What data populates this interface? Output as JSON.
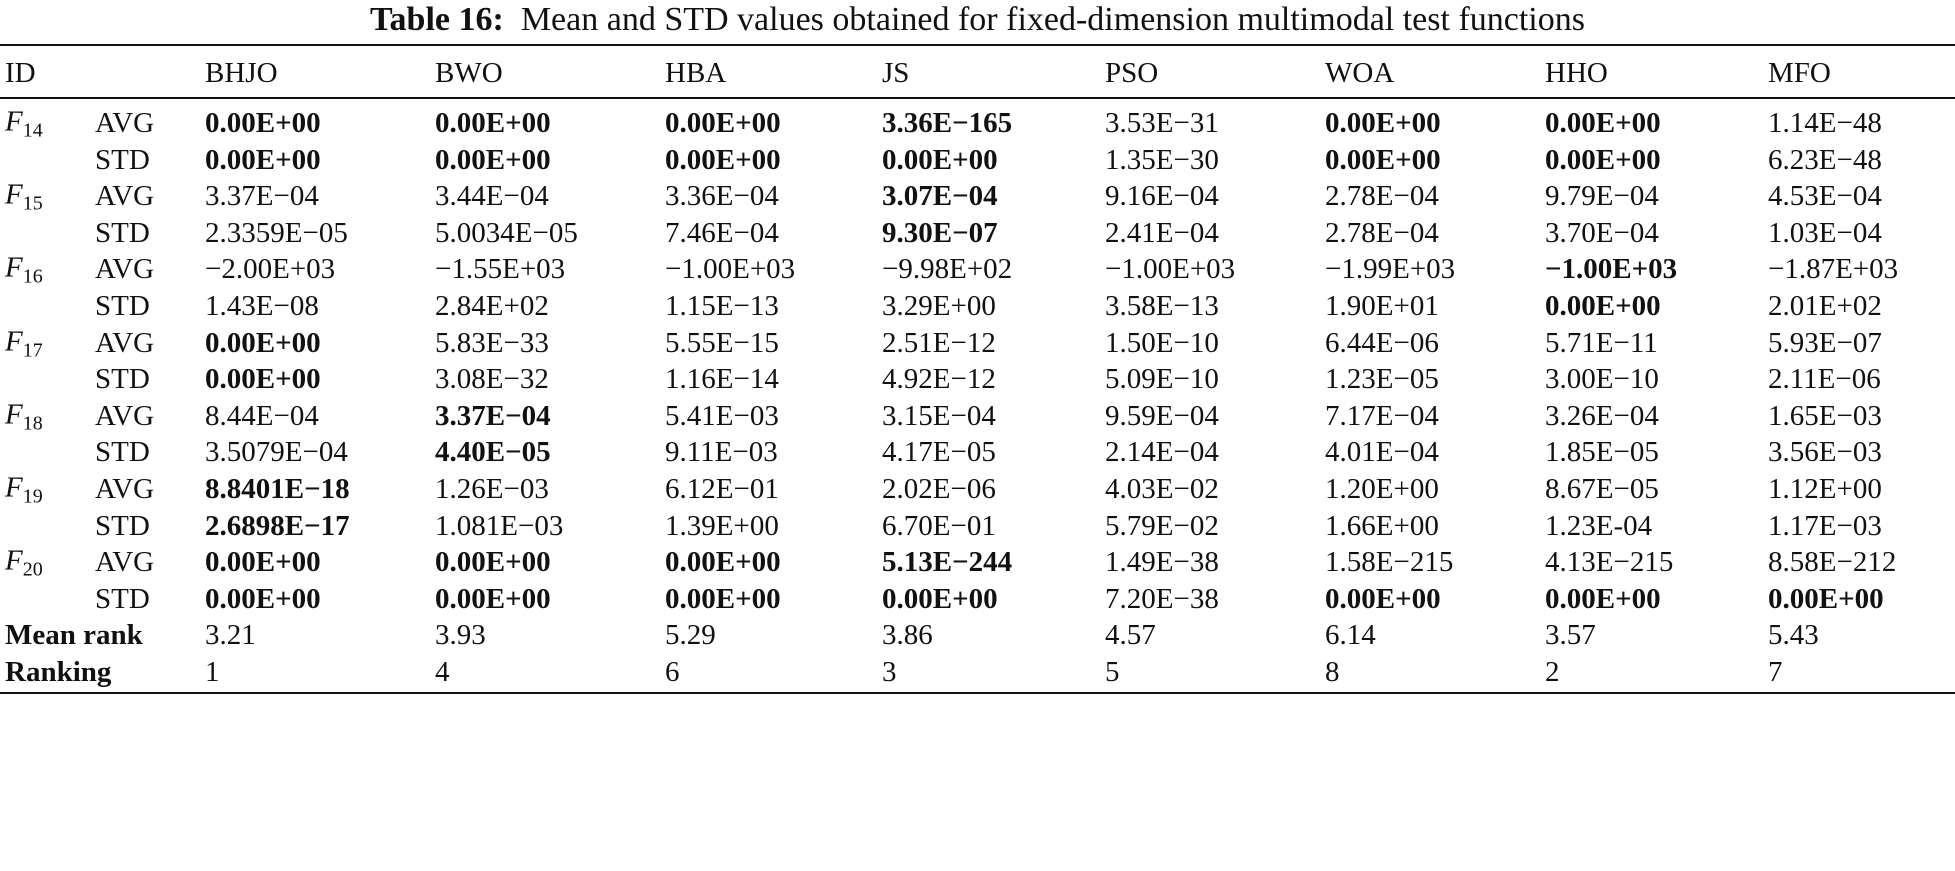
{
  "title": {
    "label": "Table 16:",
    "text": "Mean and STD values obtained for fixed-dimension multimodal test functions"
  },
  "table": {
    "header": [
      "ID",
      "BHJO",
      "BWO",
      "HBA",
      "JS",
      "PSO",
      "WOA",
      "HHO",
      "MFO"
    ],
    "groups": [
      {
        "id": {
          "base": "F",
          "sub": "14"
        },
        "rows": [
          {
            "stat": "AVG",
            "cells": [
              "0.00E+00",
              "0.00E+00",
              "0.00E+00",
              "3.36E−165",
              "3.53E−31",
              "0.00E+00",
              "0.00E+00",
              "1.14E−48"
            ],
            "bold": [
              0,
              1,
              2,
              3,
              5,
              6
            ]
          },
          {
            "stat": "STD",
            "cells": [
              "0.00E+00",
              "0.00E+00",
              "0.00E+00",
              "0.00E+00",
              "1.35E−30",
              "0.00E+00",
              "0.00E+00",
              "6.23E−48"
            ],
            "bold": [
              0,
              1,
              2,
              3,
              5,
              6
            ]
          }
        ]
      },
      {
        "id": {
          "base": "F",
          "sub": "15"
        },
        "rows": [
          {
            "stat": "AVG",
            "cells": [
              "3.37E−04",
              "3.44E−04",
              "3.36E−04",
              "3.07E−04",
              "9.16E−04",
              "2.78E−04",
              "9.79E−04",
              "4.53E−04"
            ],
            "bold": [
              3
            ]
          },
          {
            "stat": "STD",
            "cells": [
              "2.3359E−05",
              "5.0034E−05",
              "7.46E−04",
              "9.30E−07",
              "2.41E−04",
              "2.78E−04",
              "3.70E−04",
              "1.03E−04"
            ],
            "bold": [
              3
            ]
          }
        ]
      },
      {
        "id": {
          "base": "F",
          "sub": "16"
        },
        "rows": [
          {
            "stat": "AVG",
            "cells": [
              "−2.00E+03",
              "−1.55E+03",
              "−1.00E+03",
              "−9.98E+02",
              "−1.00E+03",
              "−1.99E+03",
              "−1.00E+03",
              "−1.87E+03"
            ],
            "bold": [
              6
            ]
          },
          {
            "stat": "STD",
            "cells": [
              "1.43E−08",
              "2.84E+02",
              "1.15E−13",
              "3.29E+00",
              "3.58E−13",
              "1.90E+01",
              "0.00E+00",
              "2.01E+02"
            ],
            "bold": [
              6
            ]
          }
        ]
      },
      {
        "id": {
          "base": "F",
          "sub": "17"
        },
        "rows": [
          {
            "stat": "AVG",
            "cells": [
              "0.00E+00",
              "5.83E−33",
              "5.55E−15",
              "2.51E−12",
              "1.50E−10",
              "6.44E−06",
              "5.71E−11",
              "5.93E−07"
            ],
            "bold": [
              0
            ]
          },
          {
            "stat": "STD",
            "cells": [
              "0.00E+00",
              "3.08E−32",
              "1.16E−14",
              "4.92E−12",
              "5.09E−10",
              "1.23E−05",
              "3.00E−10",
              "2.11E−06"
            ],
            "bold": [
              0
            ]
          }
        ]
      },
      {
        "id": {
          "base": "F",
          "sub": "18"
        },
        "rows": [
          {
            "stat": "AVG",
            "cells": [
              "8.44E−04",
              "3.37E−04",
              "5.41E−03",
              "3.15E−04",
              "9.59E−04",
              "7.17E−04",
              "3.26E−04",
              "1.65E−03"
            ],
            "bold": [
              1
            ]
          },
          {
            "stat": "STD",
            "cells": [
              "3.5079E−04",
              "4.40E−05",
              "9.11E−03",
              "4.17E−05",
              "2.14E−04",
              "4.01E−04",
              "1.85E−05",
              "3.56E−03"
            ],
            "bold": [
              1
            ]
          }
        ]
      },
      {
        "id": {
          "base": "F",
          "sub": "19"
        },
        "rows": [
          {
            "stat": "AVG",
            "cells": [
              "8.8401E−18",
              "1.26E−03",
              "6.12E−01",
              "2.02E−06",
              "4.03E−02",
              "1.20E+00",
              "8.67E−05",
              "1.12E+00"
            ],
            "bold": [
              0
            ]
          },
          {
            "stat": "STD",
            "cells": [
              "2.6898E−17",
              "1.081E−03",
              "1.39E+00",
              "6.70E−01",
              "5.79E−02",
              "1.66E+00",
              "1.23E-04",
              "1.17E−03"
            ],
            "bold": [
              0
            ]
          }
        ]
      },
      {
        "id": {
          "base": "F",
          "sub": "20"
        },
        "rows": [
          {
            "stat": "AVG",
            "cells": [
              "0.00E+00",
              "0.00E+00",
              "0.00E+00",
              "5.13E−244",
              "1.49E−38",
              "1.58E−215",
              "4.13E−215",
              "8.58E−212"
            ],
            "bold": [
              0,
              1,
              2,
              3
            ]
          },
          {
            "stat": "STD",
            "cells": [
              "0.00E+00",
              "0.00E+00",
              "0.00E+00",
              "0.00E+00",
              "7.20E−38",
              "0.00E+00",
              "0.00E+00",
              "0.00E+00"
            ],
            "bold": [
              0,
              1,
              2,
              3,
              5,
              6,
              7
            ]
          }
        ]
      }
    ],
    "summary": [
      {
        "label": "Mean rank",
        "cells": [
          "3.21",
          "3.93",
          "5.29",
          "3.86",
          "4.57",
          "6.14",
          "3.57",
          "5.43"
        ]
      },
      {
        "label": "Ranking",
        "cells": [
          "1",
          "4",
          "6",
          "3",
          "5",
          "8",
          "2",
          "7"
        ]
      }
    ]
  }
}
